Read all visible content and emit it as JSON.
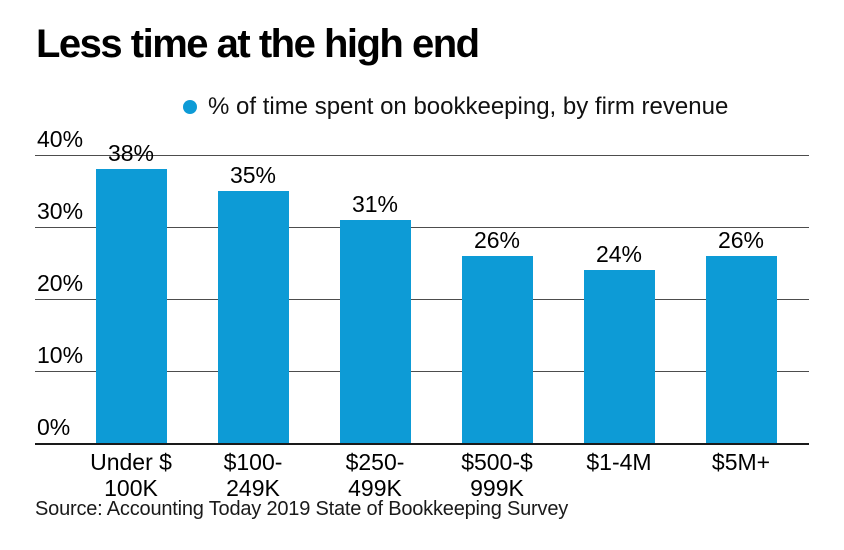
{
  "chart_data": {
    "type": "bar",
    "title": "Less time at the high end",
    "legend_label": "% of time spent on bookkeeping, by firm revenue",
    "legend_position": "top",
    "categories": [
      "Under $100K",
      "$100-249K",
      "$250-499K",
      "$500-$999K",
      "$1-4M",
      "$5M+"
    ],
    "category_label_lines": [
      [
        "Under $",
        "100K"
      ],
      [
        "$100-",
        "249K"
      ],
      [
        "$250-",
        "499K"
      ],
      [
        "$500-$",
        "999K"
      ],
      [
        "$1-4M"
      ],
      [
        "$5M+"
      ]
    ],
    "values": [
      38,
      35,
      31,
      26,
      24,
      26
    ],
    "data_labels": [
      "38%",
      "35%",
      "31%",
      "26%",
      "24%",
      "26%"
    ],
    "y_ticks": [
      {
        "value": 40,
        "label": "40%"
      },
      {
        "value": 30,
        "label": "30%"
      },
      {
        "value": 20,
        "label": "20%"
      },
      {
        "value": 10,
        "label": "10%"
      },
      {
        "value": 0,
        "label": "0%"
      }
    ],
    "ylim": [
      0,
      40
    ],
    "grid": "horizontal",
    "source": "Source: Accounting Today 2019 State of Bookkeeping Survey",
    "colors": {
      "bar": "#0d9bd6",
      "grid_line": "#4d4d4d",
      "axis_line": "#1a1a1a",
      "text": "#000000",
      "background": "#ffffff"
    }
  }
}
